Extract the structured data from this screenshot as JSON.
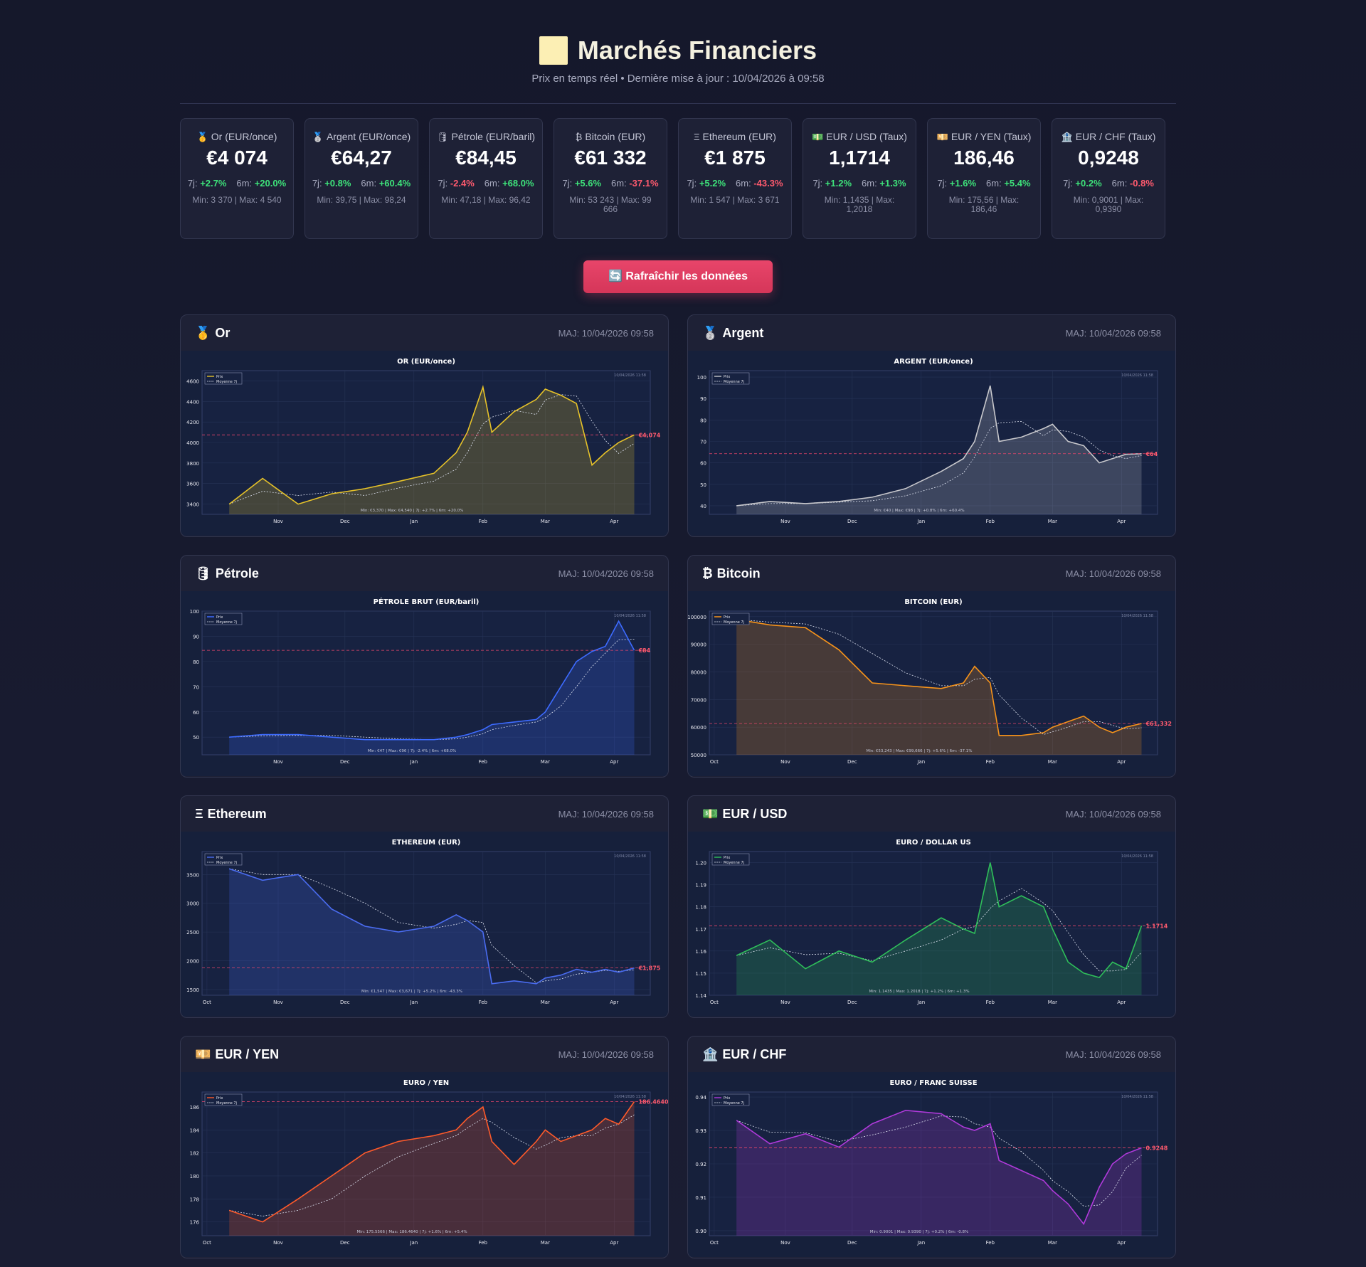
{
  "header": {
    "title": "Marchés Financiers",
    "subtitle": "Prix en temps réel • Dernière mise à jour : 10/04/2026 à 09:58"
  },
  "tickers": [
    {
      "icon": "🥇",
      "label": "Or (EUR/once)",
      "price": "€4 074",
      "c7_label": "7j:",
      "c7": "+2.7%",
      "c7_pos": true,
      "c6_label": "6m:",
      "c6": "+20.0%",
      "c6_pos": true,
      "minmax": "Min: 3 370 | Max: 4 540"
    },
    {
      "icon": "🥈",
      "label": "Argent (EUR/once)",
      "price": "€64,27",
      "c7_label": "7j:",
      "c7": "+0.8%",
      "c7_pos": true,
      "c6_label": "6m:",
      "c6": "+60.4%",
      "c6_pos": true,
      "minmax": "Min: 39,75 | Max: 98,24"
    },
    {
      "icon": "🛢",
      "label": "Pétrole (EUR/baril)",
      "price": "€84,45",
      "c7_label": "7j:",
      "c7": "-2.4%",
      "c7_pos": false,
      "c6_label": "6m:",
      "c6": "+68.0%",
      "c6_pos": true,
      "minmax": "Min: 47,18 | Max: 96,42"
    },
    {
      "icon": "₿",
      "label": "Bitcoin (EUR)",
      "price": "€61 332",
      "c7_label": "7j:",
      "c7": "+5.6%",
      "c7_pos": true,
      "c6_label": "6m:",
      "c6": "-37.1%",
      "c6_pos": false,
      "minmax": "Min: 53 243 | Max: 99 666"
    },
    {
      "icon": "Ξ",
      "label": "Ethereum (EUR)",
      "price": "€1 875",
      "c7_label": "7j:",
      "c7": "+5.2%",
      "c7_pos": true,
      "c6_label": "6m:",
      "c6": "-43.3%",
      "c6_pos": false,
      "minmax": "Min: 1 547 | Max: 3 671"
    },
    {
      "icon": "💵",
      "label": "EUR / USD (Taux)",
      "price": "1,1714",
      "c7_label": "7j:",
      "c7": "+1.2%",
      "c7_pos": true,
      "c6_label": "6m:",
      "c6": "+1.3%",
      "c6_pos": true,
      "minmax": "Min: 1,1435 | Max: 1,2018"
    },
    {
      "icon": "💴",
      "label": "EUR / YEN (Taux)",
      "price": "186,46",
      "c7_label": "7j:",
      "c7": "+1.6%",
      "c7_pos": true,
      "c6_label": "6m:",
      "c6": "+5.4%",
      "c6_pos": true,
      "minmax": "Min: 175,56 | Max: 186,46"
    },
    {
      "icon": "🏦",
      "label": "EUR / CHF (Taux)",
      "price": "0,9248",
      "c7_label": "7j:",
      "c7": "+0.2%",
      "c7_pos": true,
      "c6_label": "6m:",
      "c6": "-0.8%",
      "c6_pos": false,
      "minmax": "Min: 0,9001 | Max: 0,9390"
    }
  ],
  "refresh": {
    "label": "🔄 Rafraîchir les données"
  },
  "cards": [
    {
      "icon": "🥇",
      "title": "Or",
      "time": "MAJ: 10/04/2026 09:58",
      "chart_title": "OR (EUR/once)",
      "color": "#e6c229",
      "yticks": [
        3400,
        3600,
        3800,
        4000,
        4200,
        4400,
        4600
      ],
      "ymin": 3300,
      "ymax": 4700,
      "current": 4074,
      "current_label": "€4,074",
      "months": [
        "Nov",
        "Dec",
        "Jan",
        "Feb",
        "Mar",
        "Apr"
      ],
      "start_month": "",
      "stats": "Min: €3,370 | Max: €4,540 | 7j: +2.7% | 6m: +20.0%",
      "stamp": "10/04/2026 11:58",
      "legend": [
        "Prix",
        "Moyenne 7j"
      ]
    },
    {
      "icon": "🥈",
      "title": "Argent",
      "time": "MAJ: 10/04/2026 09:58",
      "chart_title": "ARGENT (EUR/once)",
      "color": "#c8c8cc",
      "yticks": [
        40,
        50,
        60,
        70,
        80,
        90,
        100
      ],
      "ymin": 36,
      "ymax": 103,
      "current": 64.27,
      "current_label": "€64",
      "months": [
        "Nov",
        "Dec",
        "Jan",
        "Feb",
        "Mar",
        "Apr"
      ],
      "start_month": "",
      "stats": "Min: €40 | Max: €98 | 7j: +0.8% | 6m: +60.4%",
      "stamp": "10/04/2026 11:58",
      "legend": [
        "Prix",
        "Moyenne 7j"
      ]
    },
    {
      "icon": "🛢",
      "title": "Pétrole",
      "time": "MAJ: 10/04/2026 09:58",
      "chart_title": "PÉTROLE BRUT (EUR/baril)",
      "color": "#3d6bff",
      "yticks": [
        50,
        60,
        70,
        80,
        90,
        100
      ],
      "ymin": 43,
      "ymax": 100,
      "current": 84.45,
      "current_label": "€84",
      "months": [
        "Nov",
        "Dec",
        "Jan",
        "Feb",
        "Mar",
        "Apr"
      ],
      "start_month": "",
      "stats": "Min: €47 | Max: €96 | 7j: -2.4% | 6m: +68.0%",
      "stamp": "10/04/2026 11:58",
      "legend": [
        "Prix",
        "Moyenne 7j"
      ]
    },
    {
      "icon": "₿",
      "title": "Bitcoin",
      "time": "MAJ: 10/04/2026 09:58",
      "chart_title": "BITCOIN (EUR)",
      "color": "#f7931a",
      "yticks": [
        50000,
        60000,
        70000,
        80000,
        90000,
        100000
      ],
      "ymin": 50000,
      "ymax": 102000,
      "current": 61332,
      "current_label": "€61,332",
      "months": [
        "Nov",
        "Dec",
        "Jan",
        "Feb",
        "Mar",
        "Apr"
      ],
      "start_month": "Oct",
      "stats": "Min: €53,243 | Max: €99,666 | 7j: +5.6% | 6m: -37.1%",
      "stamp": "10/04/2026 11:58",
      "legend": [
        "Prix",
        "Moyenne 7j"
      ]
    },
    {
      "icon": "Ξ",
      "title": "Ethereum",
      "time": "MAJ: 10/04/2026 09:58",
      "chart_title": "ETHEREUM (EUR)",
      "color": "#4a6cf0",
      "yticks": [
        1500,
        2000,
        2500,
        3000,
        3500
      ],
      "ymin": 1400,
      "ymax": 3900,
      "current": 1875,
      "current_label": "€1,875",
      "months": [
        "Nov",
        "Dec",
        "Jan",
        "Feb",
        "Mar",
        "Apr"
      ],
      "start_month": "Oct",
      "stats": "Min: €1,547 | Max: €3,671 | 7j: +5.2% | 6m: -43.3%",
      "stamp": "10/04/2026 11:58",
      "legend": [
        "Prix",
        "Moyenne 7j"
      ]
    },
    {
      "icon": "💵",
      "title": "EUR / USD",
      "time": "MAJ: 10/04/2026 09:58",
      "chart_title": "EURO / DOLLAR US",
      "color": "#2fbf5a",
      "yticks": [
        1.14,
        1.15,
        1.16,
        1.17,
        1.18,
        1.19,
        1.2
      ],
      "ymin": 1.14,
      "ymax": 1.205,
      "current": 1.1714,
      "current_label": "1.1714",
      "months": [
        "Nov",
        "Dec",
        "Jan",
        "Feb",
        "Mar",
        "Apr"
      ],
      "start_month": "Oct",
      "stats": "Min: 1.1435 | Max: 1.2018 | 7j: +1.2% | 6m: +1.3%",
      "stamp": "10/04/2026 11:58",
      "legend": [
        "Prix",
        "Moyenne 7j"
      ]
    },
    {
      "icon": "💴",
      "title": "EUR / YEN",
      "time": "MAJ: 10/04/2026 09:58",
      "chart_title": "EURO / YEN",
      "color": "#ff5a2a",
      "yticks": [
        176,
        178,
        180,
        182,
        184,
        186
      ],
      "ymin": 174.8,
      "ymax": 187.3,
      "current": 186.464,
      "current_label": "186.4640",
      "months": [
        "Nov",
        "Dec",
        "Jan",
        "Feb",
        "Mar",
        "Apr"
      ],
      "start_month": "Oct",
      "stats": "Min: 175.5566 | Max: 186.4640 | 7j: +1.6% | 6m: +5.4%",
      "stamp": "10/04/2026 11:58",
      "legend": [
        "Prix",
        "Moyenne 7j"
      ]
    },
    {
      "icon": "🏦",
      "title": "EUR / CHF",
      "time": "MAJ: 10/04/2026 09:58",
      "chart_title": "EURO / FRANC SUISSE",
      "color": "#b03adb",
      "yticks": [
        0.9,
        0.91,
        0.92,
        0.93,
        0.94
      ],
      "ymin": 0.8985,
      "ymax": 0.9415,
      "current": 0.9248,
      "current_label": "0.9248",
      "months": [
        "Nov",
        "Dec",
        "Jan",
        "Feb",
        "Mar",
        "Apr"
      ],
      "start_month": "Oct",
      "stats": "Min: 0.9001 | Max: 0.9390 | 7j: +0.2% | 6m: -0.8%",
      "stamp": "10/04/2026 11:58",
      "legend": [
        "Prix",
        "Moyenne 7j"
      ]
    }
  ],
  "chart_data": [
    {
      "type": "line",
      "title": "OR (EUR/once)",
      "x": [
        "Oct-10",
        "Oct-25",
        "Nov-10",
        "Nov-25",
        "Dec-10",
        "Dec-25",
        "Jan-10",
        "Jan-20",
        "Jan-25",
        "Feb-01",
        "Feb-05",
        "Feb-15",
        "Feb-25",
        "Mar-01",
        "Mar-08",
        "Mar-15",
        "Mar-22",
        "Mar-28",
        "Apr-03",
        "Apr-10"
      ],
      "series": [
        {
          "name": "Prix",
          "values": [
            3400,
            3650,
            3400,
            3500,
            3550,
            3620,
            3700,
            3900,
            4100,
            4540,
            4100,
            4300,
            4420,
            4520,
            4460,
            4380,
            3780,
            3900,
            4000,
            4074
          ]
        }
      ],
      "ylim": [
        3300,
        4700
      ]
    },
    {
      "type": "line",
      "title": "ARGENT (EUR/once)",
      "x": [
        "Oct-10",
        "Oct-25",
        "Nov-10",
        "Nov-25",
        "Dec-10",
        "Dec-25",
        "Jan-10",
        "Jan-20",
        "Jan-25",
        "Feb-01",
        "Feb-05",
        "Feb-15",
        "Feb-25",
        "Mar-01",
        "Mar-08",
        "Mar-15",
        "Mar-22",
        "Mar-28",
        "Apr-03",
        "Apr-10"
      ],
      "series": [
        {
          "name": "Prix",
          "values": [
            40,
            42,
            41,
            42,
            44,
            48,
            56,
            62,
            70,
            96,
            70,
            72,
            76,
            78,
            70,
            68,
            60,
            62,
            64,
            64.27
          ]
        }
      ],
      "ylim": [
        36,
        103
      ]
    },
    {
      "type": "line",
      "title": "PÉTROLE BRUT (EUR/baril)",
      "x": [
        "Oct-10",
        "Oct-25",
        "Nov-10",
        "Nov-25",
        "Dec-10",
        "Dec-25",
        "Jan-10",
        "Jan-20",
        "Jan-25",
        "Feb-01",
        "Feb-05",
        "Feb-15",
        "Feb-25",
        "Mar-01",
        "Mar-08",
        "Mar-15",
        "Mar-22",
        "Mar-28",
        "Apr-03",
        "Apr-10"
      ],
      "series": [
        {
          "name": "Prix",
          "values": [
            50,
            51,
            51,
            50,
            49,
            49,
            49,
            50,
            51,
            53,
            55,
            56,
            57,
            60,
            70,
            80,
            84,
            86,
            96,
            84.45
          ]
        }
      ],
      "ylim": [
        43,
        100
      ]
    },
    {
      "type": "line",
      "title": "BITCOIN (EUR)",
      "x": [
        "Oct-10",
        "Oct-25",
        "Nov-10",
        "Nov-25",
        "Dec-10",
        "Dec-25",
        "Jan-10",
        "Jan-20",
        "Jan-25",
        "Feb-01",
        "Feb-05",
        "Feb-15",
        "Feb-25",
        "Mar-01",
        "Mar-08",
        "Mar-15",
        "Mar-22",
        "Mar-28",
        "Apr-03",
        "Apr-10"
      ],
      "series": [
        {
          "name": "Prix",
          "values": [
            99000,
            97000,
            96000,
            88000,
            76000,
            75000,
            74000,
            76000,
            82000,
            76000,
            57000,
            57000,
            58000,
            60000,
            62000,
            64000,
            60000,
            58000,
            60000,
            61332
          ]
        }
      ],
      "ylim": [
        50000,
        102000
      ]
    },
    {
      "type": "line",
      "title": "ETHEREUM (EUR)",
      "x": [
        "Oct-10",
        "Oct-25",
        "Nov-10",
        "Nov-25",
        "Dec-10",
        "Dec-25",
        "Jan-10",
        "Jan-20",
        "Jan-25",
        "Feb-01",
        "Feb-05",
        "Feb-15",
        "Feb-25",
        "Mar-01",
        "Mar-08",
        "Mar-15",
        "Mar-22",
        "Mar-28",
        "Apr-03",
        "Apr-10"
      ],
      "series": [
        {
          "name": "Prix",
          "values": [
            3600,
            3400,
            3500,
            2900,
            2600,
            2500,
            2600,
            2800,
            2700,
            2500,
            1600,
            1650,
            1600,
            1700,
            1750,
            1850,
            1800,
            1850,
            1800,
            1875
          ]
        }
      ],
      "ylim": [
        1400,
        3900
      ]
    },
    {
      "type": "line",
      "title": "EURO / DOLLAR US",
      "x": [
        "Oct-10",
        "Oct-25",
        "Nov-10",
        "Nov-25",
        "Dec-10",
        "Dec-25",
        "Jan-10",
        "Jan-20",
        "Jan-25",
        "Feb-01",
        "Feb-05",
        "Feb-15",
        "Feb-25",
        "Mar-01",
        "Mar-08",
        "Mar-15",
        "Mar-22",
        "Mar-28",
        "Apr-03",
        "Apr-10"
      ],
      "series": [
        {
          "name": "Prix",
          "values": [
            1.158,
            1.165,
            1.152,
            1.16,
            1.155,
            1.165,
            1.175,
            1.17,
            1.168,
            1.2,
            1.18,
            1.185,
            1.18,
            1.17,
            1.155,
            1.15,
            1.148,
            1.155,
            1.152,
            1.1714
          ]
        }
      ],
      "ylim": [
        1.14,
        1.205
      ]
    },
    {
      "type": "line",
      "title": "EURO / YEN",
      "x": [
        "Oct-10",
        "Oct-25",
        "Nov-10",
        "Nov-25",
        "Dec-10",
        "Dec-25",
        "Jan-10",
        "Jan-20",
        "Jan-25",
        "Feb-01",
        "Feb-05",
        "Feb-15",
        "Feb-25",
        "Mar-01",
        "Mar-08",
        "Mar-15",
        "Mar-22",
        "Mar-28",
        "Apr-03",
        "Apr-10"
      ],
      "series": [
        {
          "name": "Prix",
          "values": [
            177,
            176,
            178,
            180,
            182,
            183,
            183.5,
            184,
            185,
            186,
            183,
            181,
            183,
            184,
            183,
            183.5,
            184,
            185,
            184.5,
            186.464
          ]
        }
      ],
      "ylim": [
        174.8,
        187.3
      ]
    },
    {
      "type": "line",
      "title": "EURO / FRANC SUISSE",
      "x": [
        "Oct-10",
        "Oct-25",
        "Nov-10",
        "Nov-25",
        "Dec-10",
        "Dec-25",
        "Jan-10",
        "Jan-20",
        "Jan-25",
        "Feb-01",
        "Feb-05",
        "Feb-15",
        "Feb-25",
        "Mar-01",
        "Mar-08",
        "Mar-15",
        "Mar-22",
        "Mar-28",
        "Apr-03",
        "Apr-10"
      ],
      "series": [
        {
          "name": "Prix",
          "values": [
            0.933,
            0.926,
            0.929,
            0.925,
            0.932,
            0.936,
            0.935,
            0.931,
            0.93,
            0.932,
            0.921,
            0.918,
            0.915,
            0.912,
            0.908,
            0.902,
            0.913,
            0.92,
            0.923,
            0.9248
          ]
        }
      ],
      "ylim": [
        0.8985,
        0.9415
      ]
    }
  ]
}
